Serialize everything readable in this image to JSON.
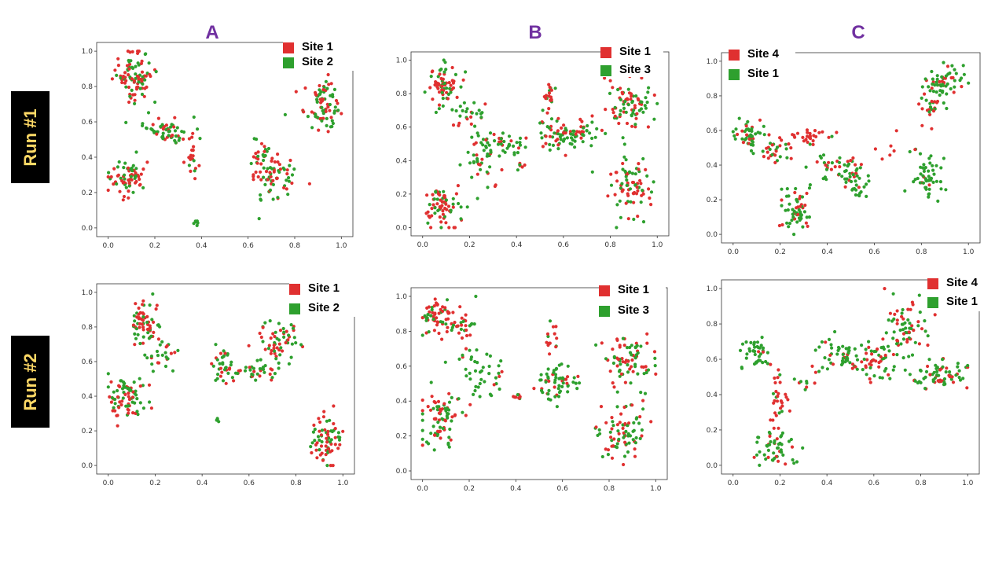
{
  "columns": [
    {
      "label": "A"
    },
    {
      "label": "B"
    },
    {
      "label": "C"
    }
  ],
  "rows": [
    {
      "label": "Run #1"
    },
    {
      "label": "Run #2"
    }
  ],
  "colors": {
    "red": "#E03030",
    "green": "#2EA02E",
    "title": "#7030A0",
    "row_bg": "#000000",
    "row_text": "#FFD966"
  },
  "chart_data": [
    {
      "id": "run1-A",
      "type": "scatter",
      "xlim": [
        0,
        1
      ],
      "ylim": [
        0,
        1
      ],
      "xticks": [
        "0.0",
        "0.2",
        "0.4",
        "0.6",
        "0.8",
        "1.0"
      ],
      "yticks": [
        "0.0",
        "0.2",
        "0.4",
        "0.6",
        "0.8",
        "1.0"
      ],
      "legend": [
        {
          "label": "Site 1",
          "color": "#E03030"
        },
        {
          "label": "Site 2",
          "color": "#2EA02E"
        }
      ],
      "clusters": [
        {
          "cx": 0.1,
          "cy": 0.88,
          "sx": 0.04,
          "sy": 0.07,
          "n": 70,
          "pr": 0.5
        },
        {
          "cx": 0.14,
          "cy": 0.8,
          "sx": 0.03,
          "sy": 0.04,
          "n": 25,
          "pr": 0.5
        },
        {
          "cx": 0.25,
          "cy": 0.55,
          "sx": 0.05,
          "sy": 0.04,
          "n": 60,
          "pr": 0.35
        },
        {
          "cx": 0.36,
          "cy": 0.4,
          "sx": 0.015,
          "sy": 0.05,
          "n": 20,
          "pr": 0.8
        },
        {
          "cx": 0.08,
          "cy": 0.29,
          "sx": 0.04,
          "sy": 0.05,
          "n": 70,
          "pr": 0.5
        },
        {
          "cx": 0.37,
          "cy": 0.02,
          "sx": 0.006,
          "sy": 0.02,
          "n": 6,
          "pr": 0
        },
        {
          "cx": 0.7,
          "cy": 0.28,
          "sx": 0.05,
          "sy": 0.08,
          "n": 70,
          "pr": 0.5
        },
        {
          "cx": 0.64,
          "cy": 0.42,
          "sx": 0.03,
          "sy": 0.04,
          "n": 20,
          "pr": 0.4
        },
        {
          "cx": 0.92,
          "cy": 0.7,
          "sx": 0.04,
          "sy": 0.07,
          "n": 80,
          "pr": 0.5
        }
      ]
    },
    {
      "id": "run1-B",
      "type": "scatter",
      "xlim": [
        0,
        1
      ],
      "ylim": [
        0,
        1
      ],
      "xticks": [
        "0.0",
        "0.2",
        "0.4",
        "0.6",
        "0.8",
        "1.0"
      ],
      "yticks": [
        "0.0",
        "0.2",
        "0.4",
        "0.6",
        "0.8",
        "1.0"
      ],
      "legend": [
        {
          "label": "Site 1",
          "color": "#E03030"
        },
        {
          "label": "Site 3",
          "color": "#2EA02E"
        }
      ],
      "clusters": [
        {
          "cx": 0.08,
          "cy": 0.85,
          "sx": 0.04,
          "sy": 0.07,
          "n": 70,
          "pr": 0.6
        },
        {
          "cx": 0.2,
          "cy": 0.66,
          "sx": 0.04,
          "sy": 0.05,
          "n": 25,
          "pr": 0.4
        },
        {
          "cx": 0.08,
          "cy": 0.14,
          "sx": 0.04,
          "sy": 0.06,
          "n": 70,
          "pr": 0.6
        },
        {
          "cx": 0.25,
          "cy": 0.4,
          "sx": 0.05,
          "sy": 0.08,
          "n": 40,
          "pr": 0.2
        },
        {
          "cx": 0.35,
          "cy": 0.5,
          "sx": 0.05,
          "sy": 0.04,
          "n": 40,
          "pr": 0.3
        },
        {
          "cx": 0.54,
          "cy": 0.77,
          "sx": 0.012,
          "sy": 0.06,
          "n": 20,
          "pr": 0.7
        },
        {
          "cx": 0.62,
          "cy": 0.56,
          "sx": 0.07,
          "sy": 0.04,
          "n": 90,
          "pr": 0.35
        },
        {
          "cx": 0.88,
          "cy": 0.72,
          "sx": 0.05,
          "sy": 0.07,
          "n": 80,
          "pr": 0.5
        },
        {
          "cx": 0.89,
          "cy": 0.25,
          "sx": 0.05,
          "sy": 0.09,
          "n": 80,
          "pr": 0.5
        },
        {
          "cx": 0.42,
          "cy": 0.36,
          "sx": 0.01,
          "sy": 0.02,
          "n": 6,
          "pr": 0.5
        }
      ]
    },
    {
      "id": "run1-C",
      "type": "scatter",
      "xlim": [
        0,
        1
      ],
      "ylim": [
        0,
        1
      ],
      "xticks": [
        "0.0",
        "0.2",
        "0.4",
        "0.6",
        "0.8",
        "1.0"
      ],
      "yticks": [
        "0.0",
        "0.2",
        "0.4",
        "0.6",
        "0.8",
        "1.0"
      ],
      "legend": [
        {
          "label": "Site 4",
          "color": "#E03030"
        },
        {
          "label": "Site 1",
          "color": "#2EA02E"
        }
      ],
      "clusters": [
        {
          "cx": 0.07,
          "cy": 0.58,
          "sx": 0.04,
          "sy": 0.04,
          "n": 40,
          "pr": 0.2
        },
        {
          "cx": 0.18,
          "cy": 0.48,
          "sx": 0.04,
          "sy": 0.04,
          "n": 30,
          "pr": 0.5
        },
        {
          "cx": 0.33,
          "cy": 0.57,
          "sx": 0.05,
          "sy": 0.02,
          "n": 30,
          "pr": 0.95
        },
        {
          "cx": 0.27,
          "cy": 0.15,
          "sx": 0.03,
          "sy": 0.07,
          "n": 60,
          "pr": 0.25
        },
        {
          "cx": 0.45,
          "cy": 0.38,
          "sx": 0.05,
          "sy": 0.04,
          "n": 40,
          "pr": 0.5
        },
        {
          "cx": 0.53,
          "cy": 0.3,
          "sx": 0.03,
          "sy": 0.05,
          "n": 30,
          "pr": 0.05
        },
        {
          "cx": 0.82,
          "cy": 0.32,
          "sx": 0.03,
          "sy": 0.06,
          "n": 50,
          "pr": 0.05
        },
        {
          "cx": 0.89,
          "cy": 0.87,
          "sx": 0.04,
          "sy": 0.06,
          "n": 60,
          "pr": 0.3
        },
        {
          "cx": 0.84,
          "cy": 0.74,
          "sx": 0.03,
          "sy": 0.03,
          "n": 20,
          "pr": 0.7
        },
        {
          "cx": 0.7,
          "cy": 0.52,
          "sx": 0.07,
          "sy": 0.08,
          "n": 10,
          "pr": 0.9
        }
      ]
    },
    {
      "id": "run2-A",
      "type": "scatter",
      "xlim": [
        0,
        1
      ],
      "ylim": [
        0,
        1
      ],
      "xticks": [
        "0.0",
        "0.2",
        "0.4",
        "0.6",
        "0.8",
        "1.0"
      ],
      "yticks": [
        "0.0",
        "0.2",
        "0.4",
        "0.6",
        "0.8",
        "1.0"
      ],
      "legend": [
        {
          "label": "Site 1",
          "color": "#E03030"
        },
        {
          "label": "Site 2",
          "color": "#2EA02E"
        }
      ],
      "clusters": [
        {
          "cx": 0.16,
          "cy": 0.82,
          "sx": 0.03,
          "sy": 0.06,
          "n": 60,
          "pr": 0.5
        },
        {
          "cx": 0.23,
          "cy": 0.66,
          "sx": 0.04,
          "sy": 0.06,
          "n": 30,
          "pr": 0.3
        },
        {
          "cx": 0.08,
          "cy": 0.38,
          "sx": 0.04,
          "sy": 0.07,
          "n": 80,
          "pr": 0.5
        },
        {
          "cx": 0.5,
          "cy": 0.57,
          "sx": 0.04,
          "sy": 0.07,
          "n": 40,
          "pr": 0.4
        },
        {
          "cx": 0.62,
          "cy": 0.55,
          "sx": 0.05,
          "sy": 0.04,
          "n": 30,
          "pr": 0.3
        },
        {
          "cx": 0.73,
          "cy": 0.72,
          "sx": 0.04,
          "sy": 0.06,
          "n": 60,
          "pr": 0.5
        },
        {
          "cx": 0.93,
          "cy": 0.14,
          "sx": 0.03,
          "sy": 0.07,
          "n": 70,
          "pr": 0.5
        },
        {
          "cx": 0.46,
          "cy": 0.26,
          "sx": 0.005,
          "sy": 0.01,
          "n": 4,
          "pr": 0
        }
      ]
    },
    {
      "id": "run2-B",
      "type": "scatter",
      "xlim": [
        0,
        1
      ],
      "ylim": [
        0,
        1
      ],
      "xticks": [
        "0.0",
        "0.2",
        "0.4",
        "0.6",
        "0.8",
        "1.0"
      ],
      "yticks": [
        "0.0",
        "0.2",
        "0.4",
        "0.6",
        "0.8",
        "1.0"
      ],
      "legend": [
        {
          "label": "Site 1",
          "color": "#E03030"
        },
        {
          "label": "Site 3",
          "color": "#2EA02E"
        }
      ],
      "clusters": [
        {
          "cx": 0.06,
          "cy": 0.88,
          "sx": 0.04,
          "sy": 0.06,
          "n": 60,
          "pr": 0.6
        },
        {
          "cx": 0.18,
          "cy": 0.83,
          "sx": 0.04,
          "sy": 0.06,
          "n": 30,
          "pr": 0.5
        },
        {
          "cx": 0.08,
          "cy": 0.3,
          "sx": 0.05,
          "sy": 0.09,
          "n": 80,
          "pr": 0.5
        },
        {
          "cx": 0.27,
          "cy": 0.55,
          "sx": 0.05,
          "sy": 0.06,
          "n": 40,
          "pr": 0.15
        },
        {
          "cx": 0.41,
          "cy": 0.43,
          "sx": 0.01,
          "sy": 0.015,
          "n": 8,
          "pr": 0.7
        },
        {
          "cx": 0.55,
          "cy": 0.75,
          "sx": 0.015,
          "sy": 0.05,
          "n": 15,
          "pr": 0.6
        },
        {
          "cx": 0.57,
          "cy": 0.5,
          "sx": 0.05,
          "sy": 0.06,
          "n": 60,
          "pr": 0.3
        },
        {
          "cx": 0.89,
          "cy": 0.65,
          "sx": 0.05,
          "sy": 0.08,
          "n": 80,
          "pr": 0.5
        },
        {
          "cx": 0.86,
          "cy": 0.22,
          "sx": 0.05,
          "sy": 0.09,
          "n": 80,
          "pr": 0.5
        }
      ]
    },
    {
      "id": "run2-C",
      "type": "scatter",
      "xlim": [
        0,
        1
      ],
      "ylim": [
        0,
        1
      ],
      "xticks": [
        "0.0",
        "0.2",
        "0.4",
        "0.6",
        "0.8",
        "1.0"
      ],
      "yticks": [
        "0.0",
        "0.2",
        "0.4",
        "0.6",
        "0.8",
        "1.0"
      ],
      "legend": [
        {
          "label": "Site 4",
          "color": "#E03030"
        },
        {
          "label": "Site 1",
          "color": "#2EA02E"
        }
      ],
      "clusters": [
        {
          "cx": 0.09,
          "cy": 0.64,
          "sx": 0.03,
          "sy": 0.05,
          "n": 40,
          "pr": 0.1
        },
        {
          "cx": 0.18,
          "cy": 0.1,
          "sx": 0.05,
          "sy": 0.05,
          "n": 50,
          "pr": 0.2
        },
        {
          "cx": 0.2,
          "cy": 0.33,
          "sx": 0.02,
          "sy": 0.08,
          "n": 30,
          "pr": 0.8
        },
        {
          "cx": 0.3,
          "cy": 0.48,
          "sx": 0.03,
          "sy": 0.03,
          "n": 10,
          "pr": 0.7
        },
        {
          "cx": 0.45,
          "cy": 0.62,
          "sx": 0.05,
          "sy": 0.05,
          "n": 50,
          "pr": 0.2
        },
        {
          "cx": 0.62,
          "cy": 0.6,
          "sx": 0.06,
          "sy": 0.06,
          "n": 60,
          "pr": 0.5
        },
        {
          "cx": 0.74,
          "cy": 0.8,
          "sx": 0.04,
          "sy": 0.07,
          "n": 60,
          "pr": 0.5
        },
        {
          "cx": 0.88,
          "cy": 0.51,
          "sx": 0.06,
          "sy": 0.04,
          "n": 70,
          "pr": 0.35
        }
      ]
    }
  ]
}
